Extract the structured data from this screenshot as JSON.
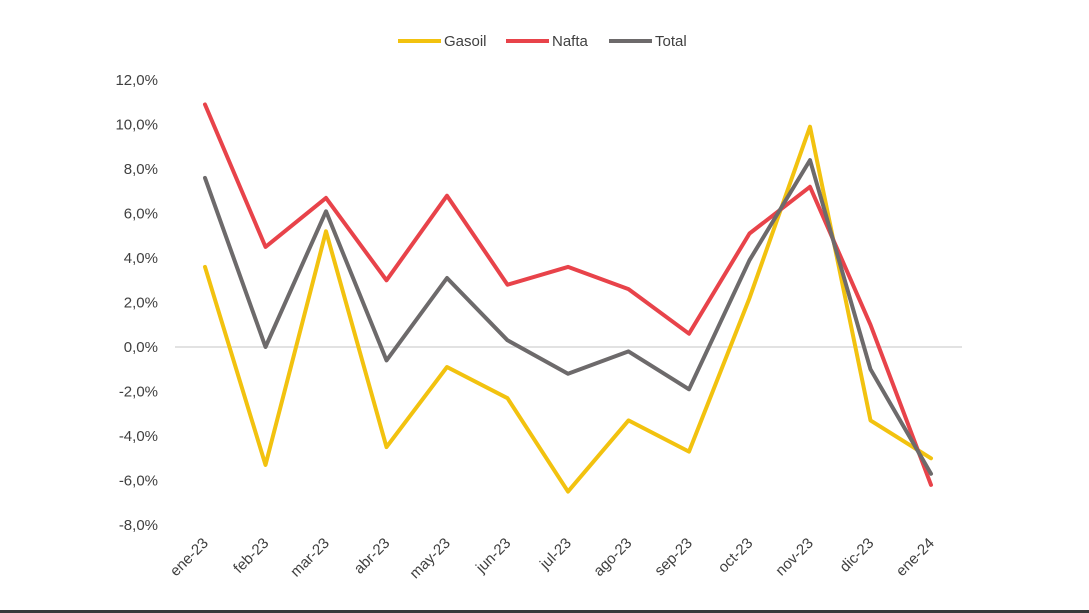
{
  "chart_data": {
    "type": "line",
    "categories": [
      "ene-23",
      "feb-23",
      "mar-23",
      "abr-23",
      "may-23",
      "jun-23",
      "jul-23",
      "ago-23",
      "sep-23",
      "oct-23",
      "nov-23",
      "dic-23",
      "ene-24"
    ],
    "series": [
      {
        "name": "Gasoil",
        "color": "#f2c20f",
        "values": [
          3.6,
          -5.3,
          5.2,
          -4.5,
          -0.9,
          -2.3,
          -6.5,
          -3.3,
          -4.7,
          2.2,
          9.9,
          -3.3,
          -5.0
        ]
      },
      {
        "name": "Nafta",
        "color": "#e8434a",
        "values": [
          10.9,
          4.5,
          6.7,
          3.0,
          6.8,
          2.8,
          3.6,
          2.6,
          0.6,
          5.1,
          7.2,
          1.0,
          -6.2
        ]
      },
      {
        "name": "Total",
        "color": "#6d6a6b",
        "values": [
          7.6,
          0.0,
          6.1,
          -0.6,
          3.1,
          0.3,
          -1.2,
          -0.2,
          -1.9,
          3.9,
          8.4,
          -1.0,
          -5.7
        ]
      }
    ],
    "yticks": [
      "12,0%",
      "10,0%",
      "8,0%",
      "6,0%",
      "4,0%",
      "2,0%",
      "0,0%",
      "-2,0%",
      "-4,0%",
      "-6,0%",
      "-8,0%"
    ],
    "ylim": [
      -8,
      12
    ],
    "legend_position": "top-center",
    "zero_line": true,
    "grid": false
  }
}
